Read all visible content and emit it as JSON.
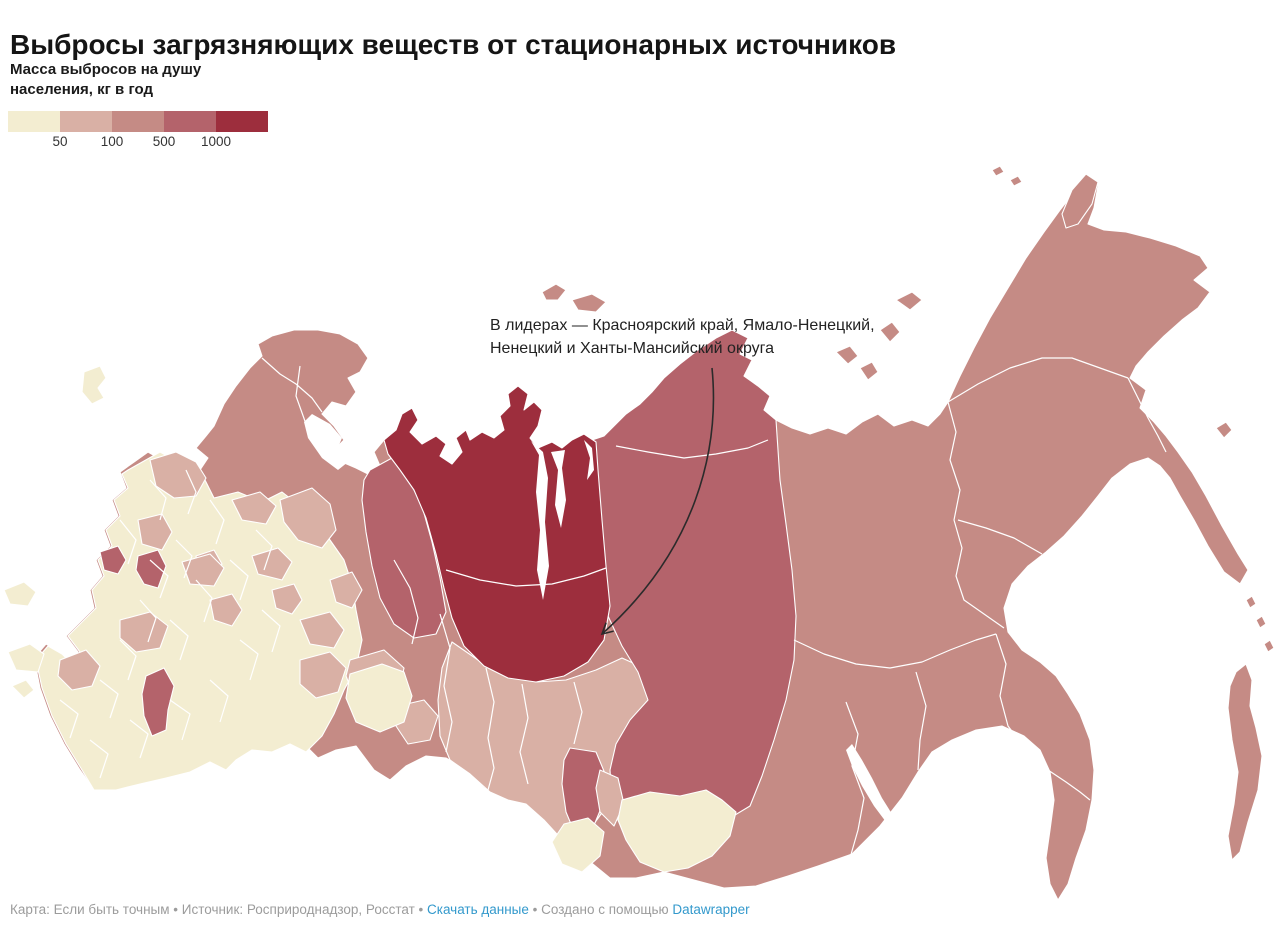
{
  "title": "Выбросы загрязняющих веществ от стационарных источников",
  "legend": {
    "title_line1": "Масса выбросов на душу",
    "title_line2": "населения, кг в год",
    "labels": [
      "50",
      "100",
      "500",
      "1000"
    ],
    "colors": [
      "#f3edd1",
      "#d9b0a5",
      "#c58b85",
      "#b4636b",
      "#9d2e3d"
    ]
  },
  "annotation": {
    "line1": "В лидерах — Красноярский край, Ямало-Ненецкий,",
    "line2": "Ненецкий и Ханты-Мансийский округа"
  },
  "footer": {
    "parts": [
      {
        "text": "Карта: Если быть точным",
        "link": false
      },
      {
        "text": " • ",
        "link": false
      },
      {
        "text": "Источник: Росприроднадзор, Росстат",
        "link": false
      },
      {
        "text": " • ",
        "link": false
      },
      {
        "text": "Скачать данные",
        "link": true
      },
      {
        "text": " • ",
        "link": false
      },
      {
        "text": "Создано с помощью ",
        "link": false
      },
      {
        "text": "Datawrapper",
        "link": true
      }
    ],
    "link_color": "#3399cc"
  },
  "chart_data": {
    "type": "choropleth",
    "title": "Выбросы загрязняющих веществ от стационарных источников",
    "metric": "Масса выбросов на душу населения, кг в год",
    "color_scale": {
      "breaks": [
        50,
        100,
        500,
        1000
      ],
      "classes": [
        "<50",
        "50–100",
        "100–500",
        "500–1000",
        ">1000"
      ],
      "colors": [
        "#f3edd1",
        "#d9b0a5",
        "#c58b85",
        "#b4636b",
        "#9d2e3d"
      ]
    },
    "leaders": [
      "Красноярский край",
      "Ямало-Ненецкий АО",
      "Ненецкий АО",
      "Ханты-Мансийский АО"
    ],
    "regions": {
      "russia-base": 3,
      "european-russia": 1,
      "west-siberia-south": 2,
      "leningrad": 2,
      "vologda": 2,
      "smolensk": 2,
      "moscow": 2,
      "voronezh": 2,
      "rostov": 2,
      "ryazan": 2,
      "nizhny-novgorod": 2,
      "kirov": 2,
      "mari-el": 2,
      "tatarstan": 2,
      "samara-saratov": 2,
      "bashkortostan": 2,
      "krasnodar": 2,
      "udmurtia": 2,
      "chelyabinsk": 2,
      "khakassia": 2,
      "novgorod-accent": 4,
      "kostroma-accent": 4,
      "volgograd-accent": 4,
      "komi": 4,
      "krasnoyarsk": 4,
      "kemerovo": 4,
      "yamalo-nenets-khanty-mansi": 5,
      "kurgan": 1,
      "altai-republic": 1,
      "tuva": 1,
      "kaliningrad": 1,
      "crimea-1": 1,
      "crimea-2": 1,
      "crimea-3": 1,
      "novaya-zemlya-1": 3,
      "novaya-zemlya-2": 3,
      "severnaya-zemlya-1": 3,
      "severnaya-zemlya-2": 3,
      "severnaya-zemlya-3": 3,
      "new-siberian-islands": 3,
      "wrangel": 3,
      "franz-josef-1": 3,
      "franz-josef-2": 3,
      "sakhalin": 3,
      "kuril-1": 3,
      "kuril-2": 3,
      "kuril-3": 3,
      "karaginsky": 3
    }
  }
}
